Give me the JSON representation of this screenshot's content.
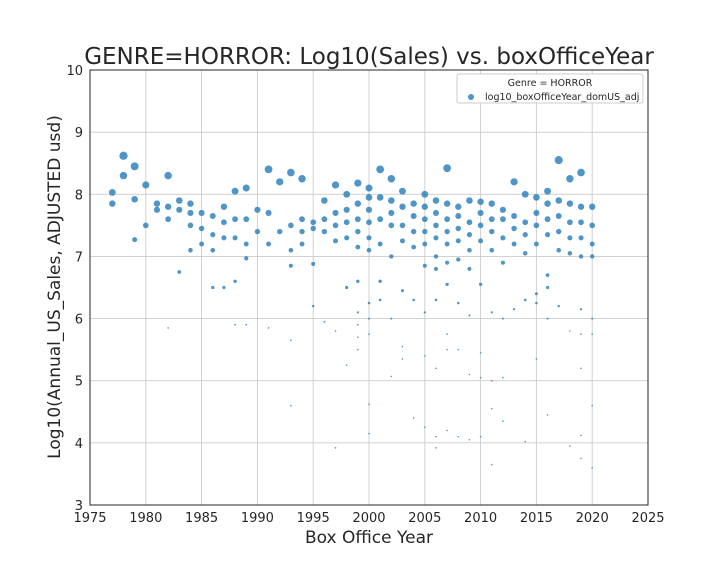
{
  "chart_data": {
    "type": "scatter",
    "title": "GENRE=HORROR: Log10(Sales) vs. boxOfficeYear",
    "xlabel": "Box Office Year",
    "ylabel": "Log10(Annual_US_Sales, ADJUSTED usd)",
    "xlim": [
      1975,
      2025
    ],
    "ylim": [
      3,
      10
    ],
    "x_ticks": [
      1975,
      1980,
      1985,
      1990,
      1995,
      2000,
      2005,
      2010,
      2015,
      2020,
      2025
    ],
    "y_ticks": [
      3,
      4,
      5,
      6,
      7,
      8,
      9,
      10
    ],
    "grid": true,
    "legend": {
      "title": "Genre = HORROR",
      "placement": "top-right",
      "entries": [
        "log10_boxOfficeYear_domUS_adj"
      ]
    },
    "series": [
      {
        "name": "log10_boxOfficeYear_domUS_adj",
        "color": "#3182bd",
        "points": [
          [
            1977,
            8.03
          ],
          [
            1977,
            7.85
          ],
          [
            1978,
            8.62
          ],
          [
            1978,
            8.3
          ],
          [
            1979,
            8.45
          ],
          [
            1979,
            7.92
          ],
          [
            1979,
            7.27
          ],
          [
            1980,
            8.15
          ],
          [
            1980,
            7.5
          ],
          [
            1981,
            7.85
          ],
          [
            1981,
            7.75
          ],
          [
            1982,
            8.3
          ],
          [
            1982,
            7.8
          ],
          [
            1982,
            7.6
          ],
          [
            1982,
            5.85
          ],
          [
            1983,
            7.9
          ],
          [
            1983,
            7.75
          ],
          [
            1983,
            6.75
          ],
          [
            1984,
            7.85
          ],
          [
            1984,
            7.7
          ],
          [
            1984,
            7.5
          ],
          [
            1984,
            7.1
          ],
          [
            1985,
            7.45
          ],
          [
            1985,
            7.7
          ],
          [
            1985,
            7.2
          ],
          [
            1986,
            7.65
          ],
          [
            1986,
            7.35
          ],
          [
            1986,
            7.1
          ],
          [
            1986,
            6.5
          ],
          [
            1987,
            7.8
          ],
          [
            1987,
            7.55
          ],
          [
            1987,
            7.3
          ],
          [
            1987,
            6.5
          ],
          [
            1988,
            8.05
          ],
          [
            1988,
            7.6
          ],
          [
            1988,
            7.3
          ],
          [
            1988,
            6.6
          ],
          [
            1988,
            5.9
          ],
          [
            1989,
            8.1
          ],
          [
            1989,
            7.6
          ],
          [
            1989,
            7.2
          ],
          [
            1989,
            6.97
          ],
          [
            1989,
            5.9
          ],
          [
            1990,
            7.75
          ],
          [
            1990,
            7.4
          ],
          [
            1991,
            8.4
          ],
          [
            1991,
            7.7
          ],
          [
            1991,
            7.2
          ],
          [
            1991,
            5.85
          ],
          [
            1992,
            8.2
          ],
          [
            1992,
            7.4
          ],
          [
            1993,
            8.35
          ],
          [
            1993,
            7.5
          ],
          [
            1993,
            7.1
          ],
          [
            1993,
            6.85
          ],
          [
            1993,
            5.65
          ],
          [
            1993,
            4.6
          ],
          [
            1994,
            8.25
          ],
          [
            1994,
            7.6
          ],
          [
            1994,
            7.4
          ],
          [
            1994,
            7.2
          ],
          [
            1995,
            7.55
          ],
          [
            1995,
            7.45
          ],
          [
            1995,
            6.88
          ],
          [
            1995,
            6.2
          ],
          [
            1996,
            7.9
          ],
          [
            1996,
            7.6
          ],
          [
            1996,
            7.4
          ],
          [
            1996,
            5.95
          ],
          [
            1997,
            8.15
          ],
          [
            1997,
            7.7
          ],
          [
            1997,
            7.5
          ],
          [
            1997,
            7.25
          ],
          [
            1997,
            5.8
          ],
          [
            1997,
            3.92
          ],
          [
            1998,
            8.0
          ],
          [
            1998,
            7.75
          ],
          [
            1998,
            7.55
          ],
          [
            1998,
            7.3
          ],
          [
            1998,
            6.5
          ],
          [
            1998,
            5.25
          ],
          [
            1999,
            8.18
          ],
          [
            1999,
            7.85
          ],
          [
            1999,
            7.6
          ],
          [
            1999,
            7.4
          ],
          [
            1999,
            7.15
          ],
          [
            1999,
            6.6
          ],
          [
            1999,
            6.1
          ],
          [
            1999,
            5.9
          ],
          [
            1999,
            5.7
          ],
          [
            1999,
            5.5
          ],
          [
            2000,
            8.1
          ],
          [
            2000,
            7.95
          ],
          [
            2000,
            7.75
          ],
          [
            2000,
            7.55
          ],
          [
            2000,
            7.3
          ],
          [
            2000,
            7.1
          ],
          [
            2000,
            6.25
          ],
          [
            2000,
            6.0
          ],
          [
            2000,
            5.75
          ],
          [
            2000,
            4.62
          ],
          [
            2000,
            4.15
          ],
          [
            2001,
            8.4
          ],
          [
            2001,
            7.95
          ],
          [
            2001,
            7.6
          ],
          [
            2001,
            7.2
          ],
          [
            2001,
            6.6
          ],
          [
            2001,
            6.3
          ],
          [
            2002,
            8.25
          ],
          [
            2002,
            7.9
          ],
          [
            2002,
            7.7
          ],
          [
            2002,
            7.5
          ],
          [
            2002,
            7.0
          ],
          [
            2002,
            6.0
          ],
          [
            2002,
            5.07
          ],
          [
            2003,
            8.05
          ],
          [
            2003,
            7.8
          ],
          [
            2003,
            7.5
          ],
          [
            2003,
            7.25
          ],
          [
            2003,
            6.45
          ],
          [
            2003,
            5.55
          ],
          [
            2003,
            5.35
          ],
          [
            2004,
            7.85
          ],
          [
            2004,
            7.65
          ],
          [
            2004,
            7.4
          ],
          [
            2004,
            7.15
          ],
          [
            2004,
            6.3
          ],
          [
            2004,
            4.4
          ],
          [
            2005,
            8.0
          ],
          [
            2005,
            7.8
          ],
          [
            2005,
            7.6
          ],
          [
            2005,
            7.4
          ],
          [
            2005,
            7.2
          ],
          [
            2005,
            6.85
          ],
          [
            2005,
            6.1
          ],
          [
            2005,
            5.4
          ],
          [
            2005,
            4.25
          ],
          [
            2006,
            7.9
          ],
          [
            2006,
            7.7
          ],
          [
            2006,
            7.5
          ],
          [
            2006,
            7.3
          ],
          [
            2006,
            7.0
          ],
          [
            2006,
            6.8
          ],
          [
            2006,
            6.3
          ],
          [
            2006,
            5.2
          ],
          [
            2006,
            4.1
          ],
          [
            2006,
            3.92
          ],
          [
            2007,
            8.42
          ],
          [
            2007,
            7.85
          ],
          [
            2007,
            7.6
          ],
          [
            2007,
            7.4
          ],
          [
            2007,
            7.2
          ],
          [
            2007,
            6.9
          ],
          [
            2007,
            6.55
          ],
          [
            2007,
            5.75
          ],
          [
            2007,
            5.5
          ],
          [
            2007,
            4.2
          ],
          [
            2008,
            7.8
          ],
          [
            2008,
            7.65
          ],
          [
            2008,
            7.45
          ],
          [
            2008,
            7.25
          ],
          [
            2008,
            6.95
          ],
          [
            2008,
            6.25
          ],
          [
            2008,
            5.5
          ],
          [
            2008,
            4.1
          ],
          [
            2009,
            7.9
          ],
          [
            2009,
            7.55
          ],
          [
            2009,
            7.35
          ],
          [
            2009,
            7.1
          ],
          [
            2009,
            6.8
          ],
          [
            2009,
            6.05
          ],
          [
            2009,
            5.1
          ],
          [
            2009,
            4.05
          ],
          [
            2010,
            7.88
          ],
          [
            2010,
            7.7
          ],
          [
            2010,
            7.5
          ],
          [
            2010,
            7.25
          ],
          [
            2010,
            6.55
          ],
          [
            2010,
            5.45
          ],
          [
            2010,
            5.05
          ],
          [
            2010,
            4.1
          ],
          [
            2011,
            7.85
          ],
          [
            2011,
            7.6
          ],
          [
            2011,
            7.4
          ],
          [
            2011,
            7.1
          ],
          [
            2011,
            6.1
          ],
          [
            2011,
            5.0
          ],
          [
            2011,
            4.55
          ],
          [
            2011,
            3.65
          ],
          [
            2012,
            7.75
          ],
          [
            2012,
            7.6
          ],
          [
            2012,
            7.3
          ],
          [
            2012,
            6.9
          ],
          [
            2012,
            6.0
          ],
          [
            2012,
            5.05
          ],
          [
            2012,
            4.35
          ],
          [
            2013,
            8.2
          ],
          [
            2013,
            7.65
          ],
          [
            2013,
            7.45
          ],
          [
            2013,
            7.2
          ],
          [
            2013,
            6.15
          ],
          [
            2014,
            8.0
          ],
          [
            2014,
            7.55
          ],
          [
            2014,
            7.35
          ],
          [
            2014,
            7.05
          ],
          [
            2014,
            6.3
          ],
          [
            2014,
            4.02
          ],
          [
            2015,
            7.95
          ],
          [
            2015,
            7.7
          ],
          [
            2015,
            7.5
          ],
          [
            2015,
            7.2
          ],
          [
            2015,
            6.4
          ],
          [
            2015,
            6.25
          ],
          [
            2015,
            5.35
          ],
          [
            2016,
            8.05
          ],
          [
            2016,
            7.85
          ],
          [
            2016,
            7.6
          ],
          [
            2016,
            7.35
          ],
          [
            2016,
            6.7
          ],
          [
            2016,
            6.5
          ],
          [
            2016,
            6.0
          ],
          [
            2016,
            4.45
          ],
          [
            2017,
            8.55
          ],
          [
            2017,
            7.9
          ],
          [
            2017,
            7.65
          ],
          [
            2017,
            7.4
          ],
          [
            2017,
            7.1
          ],
          [
            2017,
            6.2
          ],
          [
            2018,
            8.25
          ],
          [
            2018,
            7.85
          ],
          [
            2018,
            7.55
          ],
          [
            2018,
            7.3
          ],
          [
            2018,
            7.05
          ],
          [
            2018,
            5.8
          ],
          [
            2018,
            3.95
          ],
          [
            2019,
            8.35
          ],
          [
            2019,
            7.8
          ],
          [
            2019,
            7.55
          ],
          [
            2019,
            7.3
          ],
          [
            2019,
            7.0
          ],
          [
            2019,
            6.15
          ],
          [
            2019,
            5.75
          ],
          [
            2019,
            5.2
          ],
          [
            2019,
            4.12
          ],
          [
            2019,
            3.75
          ],
          [
            2020,
            7.8
          ],
          [
            2020,
            7.5
          ],
          [
            2020,
            7.2
          ],
          [
            2020,
            7.0
          ],
          [
            2020,
            6.0
          ],
          [
            2020,
            5.75
          ],
          [
            2020,
            4.6
          ],
          [
            2020,
            3.6
          ]
        ]
      }
    ]
  }
}
